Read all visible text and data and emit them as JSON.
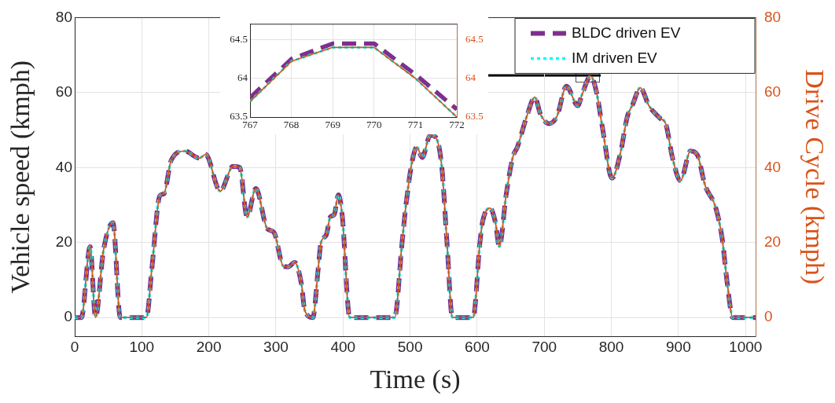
{
  "chart_data": [
    {
      "type": "line",
      "xlabel": "Time (s)",
      "ylabel": "Vehicle speed (kmph)",
      "y2label": "Drive Cycle (kmph)",
      "x": [
        0,
        10,
        23,
        31,
        43,
        57,
        68,
        107,
        115,
        127,
        133,
        144,
        164,
        186,
        195,
        217,
        236,
        246,
        257,
        270,
        287,
        297,
        311,
        318,
        328,
        338,
        343,
        355,
        363,
        367,
        375,
        381,
        387,
        393,
        399,
        410,
        477,
        488,
        494,
        502,
        510,
        518,
        530,
        537,
        547,
        555,
        563,
        594,
        604,
        608,
        619,
        627,
        633,
        643,
        653,
        660,
        674,
        686,
        694,
        707,
        719,
        733,
        750,
        756,
        769,
        778,
        787,
        801,
        813,
        824,
        832,
        843,
        856,
        873,
        881,
        891,
        903,
        918,
        928,
        940,
        955,
        965,
        973,
        981,
        1015
      ],
      "series": [
        {
          "name": "BLDC driven EV",
          "color": "#7e2f8e",
          "line_style": "dashed",
          "values": [
            0,
            0,
            18.9,
            0,
            18,
            25.3,
            0,
            0,
            13,
            32.5,
            33,
            42,
            44.4,
            42.5,
            43.5,
            33.7,
            40.3,
            40,
            26.8,
            34.4,
            23.7,
            22.7,
            13.7,
            13.5,
            14.7,
            8.9,
            1.9,
            0,
            13,
            19.9,
            22,
            26.8,
            27.5,
            32.7,
            26.8,
            0,
            0,
            19.9,
            30.3,
            40.6,
            45.5,
            42.7,
            48.6,
            48.3,
            40.6,
            19.9,
            0,
            0,
            19.9,
            25.5,
            29.2,
            25.5,
            18.9,
            32.5,
            42.7,
            45.5,
            53.7,
            58.8,
            54.4,
            51.7,
            53.7,
            61.7,
            56.5,
            59.3,
            64.4,
            60,
            50.3,
            37.2,
            43.4,
            53.7,
            56.9,
            61.3,
            56.5,
            53.1,
            51.7,
            42.7,
            36.5,
            44.4,
            43.4,
            35.1,
            29.6,
            21.3,
            8.8,
            0,
            0
          ]
        },
        {
          "name": "IM driven EV",
          "color": "#00ffff",
          "line_style": "dotted",
          "values": [
            0,
            0,
            18.9,
            0,
            18,
            25.3,
            0,
            0,
            13,
            32.5,
            33,
            42,
            44.4,
            42.5,
            43.5,
            33.7,
            40.3,
            40,
            26.8,
            34.4,
            23.7,
            22.7,
            13.7,
            13.5,
            14.7,
            8.9,
            1.9,
            0,
            13,
            19.9,
            22,
            26.8,
            27.5,
            32.7,
            26.8,
            0,
            0,
            19.9,
            30.3,
            40.6,
            45.5,
            42.7,
            48.6,
            48.3,
            40.6,
            19.9,
            0,
            0,
            19.9,
            25.5,
            29.2,
            25.5,
            18.9,
            32.5,
            42.7,
            45.5,
            53.7,
            58.8,
            54.4,
            51.7,
            53.7,
            61.7,
            56.5,
            59.3,
            64.4,
            60,
            50.3,
            37.2,
            43.4,
            53.7,
            56.9,
            61.3,
            56.5,
            53.1,
            51.7,
            42.7,
            36.5,
            44.4,
            43.4,
            35.1,
            29.6,
            21.3,
            8.8,
            0,
            0
          ]
        },
        {
          "color": "#d95319",
          "line_style": "solid",
          "axis": "y2",
          "values": [
            0,
            0,
            18.9,
            0,
            18,
            25.3,
            0,
            0,
            13,
            32.5,
            33,
            42,
            44.4,
            42.5,
            43.5,
            33.7,
            40.3,
            40,
            26.8,
            34.4,
            23.7,
            22.7,
            13.7,
            13.5,
            14.7,
            8.9,
            1.9,
            0,
            13,
            19.9,
            22,
            26.8,
            27.5,
            32.7,
            26.8,
            0,
            0,
            19.9,
            30.3,
            40.6,
            45.5,
            42.7,
            48.6,
            48.3,
            40.6,
            19.9,
            0,
            0,
            19.9,
            25.5,
            29.2,
            25.5,
            18.9,
            32.5,
            42.7,
            45.5,
            53.7,
            58.8,
            54.4,
            51.7,
            53.7,
            61.7,
            56.5,
            59.3,
            64.4,
            60,
            50.3,
            37.2,
            43.4,
            53.7,
            56.9,
            61.3,
            56.5,
            53.1,
            51.7,
            42.7,
            36.5,
            44.4,
            43.4,
            35.1,
            29.6,
            21.3,
            8.8,
            0,
            0
          ]
        }
      ],
      "xlim": [
        0,
        1015
      ],
      "xticks": [
        0,
        100,
        200,
        300,
        400,
        500,
        600,
        700,
        800,
        900,
        1000
      ],
      "ylim": [
        -5,
        80
      ],
      "yticks": [
        0,
        20,
        40,
        60,
        80
      ],
      "y2lim": [
        -5,
        80
      ],
      "y2ticks": [
        0,
        20,
        40,
        60,
        80
      ],
      "grid": true,
      "legend": "top right"
    },
    {
      "type": "line",
      "x": [
        767,
        768,
        769,
        770,
        771,
        772
      ],
      "series": [
        {
          "color": "#7e2f8e",
          "line_style": "dashed",
          "values": [
            63.75,
            64.25,
            64.45,
            64.45,
            64.05,
            63.6
          ]
        },
        {
          "color": "#00ffff",
          "line_style": "dotted",
          "values": [
            63.7,
            64.22,
            64.4,
            64.4,
            64.0,
            63.5
          ]
        },
        {
          "color": "#d95319",
          "line_style": "solid",
          "axis": "y2",
          "values": [
            63.7,
            64.22,
            64.4,
            64.4,
            64.0,
            63.5
          ]
        }
      ],
      "xlim": [
        767,
        772
      ],
      "xticks": [
        767,
        768,
        769,
        770,
        771,
        772
      ],
      "ylim": [
        63.5,
        64.7
      ],
      "yticks": [
        63.5,
        64,
        64.5
      ],
      "y2lim": [
        63.5,
        64.7
      ],
      "y2ticks": [
        63.5,
        64,
        64.5
      ],
      "grid": true
    }
  ]
}
